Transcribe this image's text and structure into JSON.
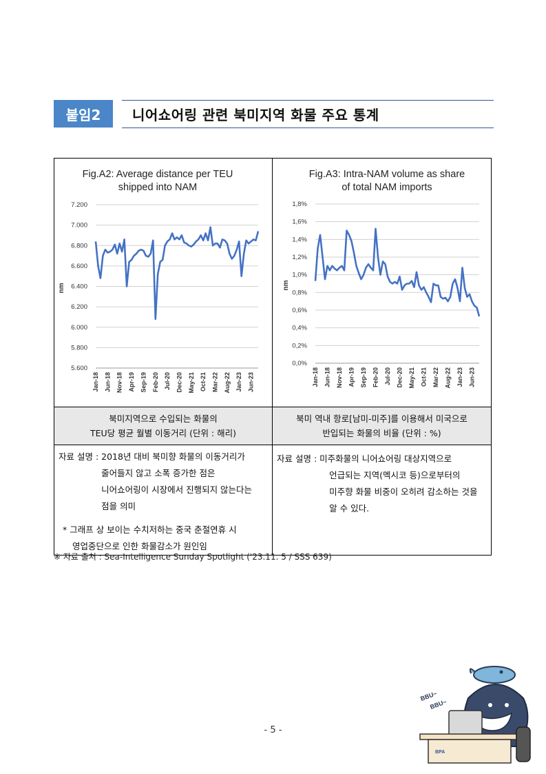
{
  "header": {
    "badge": "붙임2",
    "title": "니어쇼어링 관련 북미지역 화물 주요 통계"
  },
  "charts": {
    "left": {
      "title_line1": "Fig.A2: Average distance per TEU",
      "title_line2": "shipped into NAM",
      "ylabel": "nm",
      "yticks": [
        "7.200",
        "7.000",
        "6.800",
        "6.600",
        "6.400",
        "6.200",
        "6.000",
        "5.800",
        "5.600"
      ],
      "xticks": [
        "Jan-18",
        "Jun-18",
        "Nov-18",
        "Apr-19",
        "Sep-19",
        "Feb-20",
        "Jul-20",
        "Dec-20",
        "May-21",
        "Oct-21",
        "Mar-22",
        "Aug-22",
        "Jan-23",
        "Jun-23"
      ]
    },
    "right": {
      "title_line1": "Fig.A3: Intra-NAM volume as share",
      "title_line2": "of total NAM imports",
      "ylabel": "nm",
      "yticks": [
        "1,8%",
        "1,6%",
        "1,4%",
        "1,2%",
        "1,0%",
        "0,8%",
        "0,6%",
        "0,4%",
        "0,2%",
        "0,0%"
      ],
      "xticks": [
        "Jan-18",
        "Jun-18",
        "Nov-18",
        "Apr-19",
        "Sep-19",
        "Feb-20",
        "Jul-20",
        "Dec-20",
        "May-21",
        "Oct-21",
        "Mar-22",
        "Aug-22",
        "Jan-23",
        "Jun-23"
      ]
    }
  },
  "chart_data": [
    {
      "type": "line",
      "title": "Fig.A2: Average distance per TEU shipped into NAM",
      "xlabel": "",
      "ylabel": "nm",
      "ylim": [
        5600,
        7200
      ],
      "grid": true,
      "x": [
        "Jan-18",
        "Feb-18",
        "Mar-18",
        "Apr-18",
        "May-18",
        "Jun-18",
        "Jul-18",
        "Aug-18",
        "Sep-18",
        "Oct-18",
        "Nov-18",
        "Dec-18",
        "Jan-19",
        "Feb-19",
        "Mar-19",
        "Apr-19",
        "May-19",
        "Jun-19",
        "Jul-19",
        "Aug-19",
        "Sep-19",
        "Oct-19",
        "Nov-19",
        "Dec-19",
        "Jan-20",
        "Feb-20",
        "Mar-20",
        "Apr-20",
        "May-20",
        "Jun-20",
        "Jul-20",
        "Aug-20",
        "Sep-20",
        "Oct-20",
        "Nov-20",
        "Dec-20",
        "Jan-21",
        "Feb-21",
        "Mar-21",
        "Apr-21",
        "May-21",
        "Jun-21",
        "Jul-21",
        "Aug-21",
        "Sep-21",
        "Oct-21",
        "Nov-21",
        "Dec-21",
        "Jan-22",
        "Feb-22",
        "Mar-22",
        "Apr-22",
        "May-22",
        "Jun-22",
        "Jul-22",
        "Aug-22",
        "Sep-22",
        "Oct-22",
        "Nov-22",
        "Dec-22",
        "Jan-23",
        "Feb-23",
        "Mar-23",
        "Apr-23",
        "May-23",
        "Jun-23",
        "Jul-23",
        "Aug-23",
        "Sep-23"
      ],
      "values": [
        6840,
        6600,
        6480,
        6700,
        6760,
        6730,
        6740,
        6760,
        6810,
        6720,
        6820,
        6740,
        6860,
        6400,
        6640,
        6660,
        6700,
        6720,
        6750,
        6760,
        6750,
        6700,
        6690,
        6720,
        6850,
        6080,
        6520,
        6640,
        6660,
        6800,
        6840,
        6860,
        6920,
        6860,
        6880,
        6860,
        6900,
        6830,
        6820,
        6800,
        6790,
        6810,
        6840,
        6860,
        6900,
        6850,
        6920,
        6850,
        6980,
        6800,
        6820,
        6820,
        6780,
        6860,
        6850,
        6820,
        6720,
        6670,
        6700,
        6760,
        6840,
        6500,
        6720,
        6850,
        6820,
        6840,
        6860,
        6850,
        6940
      ]
    },
    {
      "type": "line",
      "title": "Fig.A3: Intra-NAM volume as share of total NAM imports",
      "xlabel": "",
      "ylabel": "nm",
      "ylim": [
        0,
        1.8
      ],
      "grid": true,
      "x": [
        "Jan-18",
        "Feb-18",
        "Mar-18",
        "Apr-18",
        "May-18",
        "Jun-18",
        "Jul-18",
        "Aug-18",
        "Sep-18",
        "Oct-18",
        "Nov-18",
        "Dec-18",
        "Jan-19",
        "Feb-19",
        "Mar-19",
        "Apr-19",
        "May-19",
        "Jun-19",
        "Jul-19",
        "Aug-19",
        "Sep-19",
        "Oct-19",
        "Nov-19",
        "Dec-19",
        "Jan-20",
        "Feb-20",
        "Mar-20",
        "Apr-20",
        "May-20",
        "Jun-20",
        "Jul-20",
        "Aug-20",
        "Sep-20",
        "Oct-20",
        "Nov-20",
        "Dec-20",
        "Jan-21",
        "Feb-21",
        "Mar-21",
        "Apr-21",
        "May-21",
        "Jun-21",
        "Jul-21",
        "Aug-21",
        "Sep-21",
        "Oct-21",
        "Nov-21",
        "Dec-21",
        "Jan-22",
        "Feb-22",
        "Mar-22",
        "Apr-22",
        "May-22",
        "Jun-22",
        "Jul-22",
        "Aug-22",
        "Sep-22",
        "Oct-22",
        "Nov-22",
        "Dec-22",
        "Jan-23",
        "Feb-23",
        "Mar-23",
        "Apr-23",
        "May-23",
        "Jun-23",
        "Jul-23",
        "Aug-23",
        "Sep-23"
      ],
      "values": [
        0.93,
        1.3,
        1.45,
        1.2,
        0.95,
        1.1,
        1.05,
        1.1,
        1.07,
        1.05,
        1.08,
        1.1,
        1.05,
        1.5,
        1.45,
        1.38,
        1.25,
        1.1,
        1.02,
        0.95,
        1.0,
        1.08,
        1.12,
        1.08,
        1.05,
        1.52,
        1.2,
        1.0,
        1.15,
        1.12,
        0.98,
        0.92,
        0.9,
        0.92,
        0.9,
        0.98,
        0.83,
        0.88,
        0.9,
        0.9,
        0.93,
        0.86,
        1.03,
        0.88,
        0.83,
        0.86,
        0.8,
        0.75,
        0.69,
        0.9,
        0.88,
        0.88,
        0.75,
        0.73,
        0.74,
        0.7,
        0.75,
        0.9,
        0.95,
        0.85,
        0.7,
        1.08,
        0.85,
        0.75,
        0.78,
        0.7,
        0.65,
        0.63,
        0.53
      ]
    }
  ],
  "captions": {
    "left_line1": "북미지역으로 수입되는 화물의",
    "left_line2": "TEU당 평균 월별 이동거리 (단위 : 해리)",
    "right_line1": "북미 역내 항로[남미-미주]를 이용해서 미국으로",
    "right_line2": "반입되는 화물의 비율 (단위 : %)"
  },
  "notes": {
    "left_label": "자료 설명 : ",
    "left_line1": "2018년 대비 북미향 화물의 이동거리가",
    "left_line2": "줄어들지 않고 소폭 증가한 점은",
    "left_line3": "니어쇼어링이 시장에서 진행되지 않는다는",
    "left_line4": "점을 의미",
    "left_footnote_line1": "* 그래프 상 보이는 수치저하는 중국 춘절연휴 시",
    "left_footnote_line2": "영업중단으로 인한 화물감소가 원인임",
    "right_label": "자료 설명 : ",
    "right_line1": "미주화물의 니어쇼어링 대상지역으로",
    "right_line2": "언급되는 지역(멕시코 등)으로부터의",
    "right_line3": "미주향 화물 비중이 오히려 감소하는 것을",
    "right_line4": "알 수 있다."
  },
  "source": "※ 자료 출처 : Sea-Intelligence Sunday Spotlight ('23.11. 5 / SSS 639)",
  "page_number": "- 5 -",
  "mascot": {
    "speech_line1": "BBU~",
    "speech_line2": "BBU~",
    "logo": "BPA"
  },
  "colors": {
    "badge": "#4a86c8",
    "rule": "#2f5597",
    "line": "#4472c4"
  }
}
